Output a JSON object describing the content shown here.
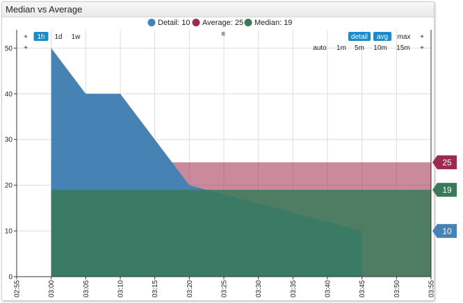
{
  "widget": {
    "title": "Median vs Average"
  },
  "controls": {
    "menu_icon": "≡",
    "left_row1": [
      {
        "label": "+",
        "active": false
      },
      {
        "label": "1h",
        "active": true
      },
      {
        "label": "1d",
        "active": false
      },
      {
        "label": "1w",
        "active": false
      }
    ],
    "left_row2": [
      {
        "label": "+",
        "active": false
      }
    ],
    "right_row1": [
      {
        "label": "detail",
        "active": true
      },
      {
        "label": "avg",
        "active": true
      },
      {
        "label": "max",
        "active": false
      },
      {
        "label": "+",
        "active": false
      }
    ],
    "right_row2": [
      {
        "label": "auto",
        "active": false
      },
      {
        "label": "1m",
        "active": false
      },
      {
        "label": "5m",
        "active": false
      },
      {
        "label": "10m",
        "active": false
      },
      {
        "label": "15m",
        "active": false
      },
      {
        "label": "+",
        "active": false
      }
    ]
  },
  "chart_data": {
    "type": "area",
    "x_ticks": [
      "02:55",
      "03:00",
      "03:05",
      "03:10",
      "03:15",
      "03:20",
      "03:25",
      "03:30",
      "03:35",
      "03:40",
      "03:45",
      "03:50",
      "03:55"
    ],
    "y_ticks": [
      0,
      10,
      20,
      30,
      40,
      50
    ],
    "xlim": [
      "02:55",
      "03:55"
    ],
    "ylim": [
      0,
      54
    ],
    "grid": true,
    "legend_position": "top-center",
    "series": [
      {
        "name": "Detail: 10",
        "badge": "10",
        "color": "#4682b4",
        "points": [
          [
            "03:00",
            50
          ],
          [
            "03:05",
            40
          ],
          [
            "03:10",
            40
          ],
          [
            "03:20",
            20
          ],
          [
            "03:45",
            10
          ]
        ]
      },
      {
        "name": "Average: 25",
        "badge": "25",
        "color": "#9e2a4e",
        "points": [
          [
            "03:00",
            25
          ],
          [
            "03:55",
            25
          ]
        ]
      },
      {
        "name": "Median: 19",
        "badge": "19",
        "color": "#3a7a58",
        "points": [
          [
            "03:00",
            19
          ],
          [
            "03:55",
            19
          ]
        ]
      }
    ]
  }
}
